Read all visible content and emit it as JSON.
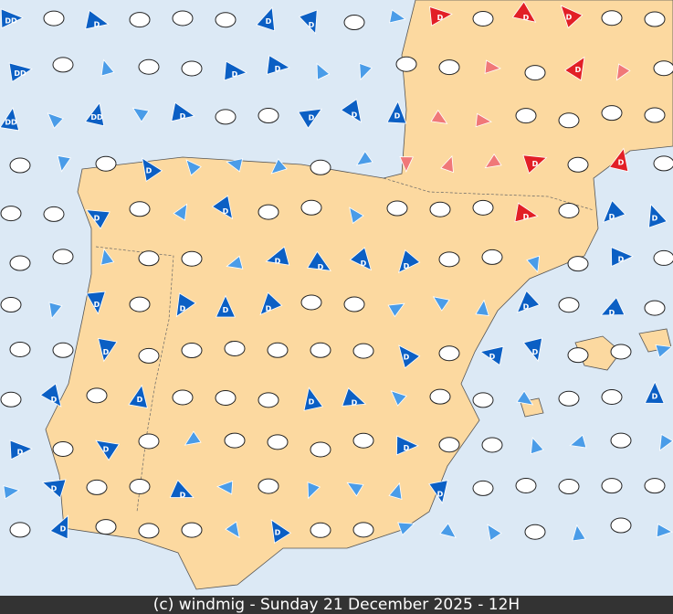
{
  "footer": "(c) windmig - Sunday 21 December 2025 - 12H",
  "wind_labels": {
    "strong": "D",
    "very_strong": "DD"
  }
}
